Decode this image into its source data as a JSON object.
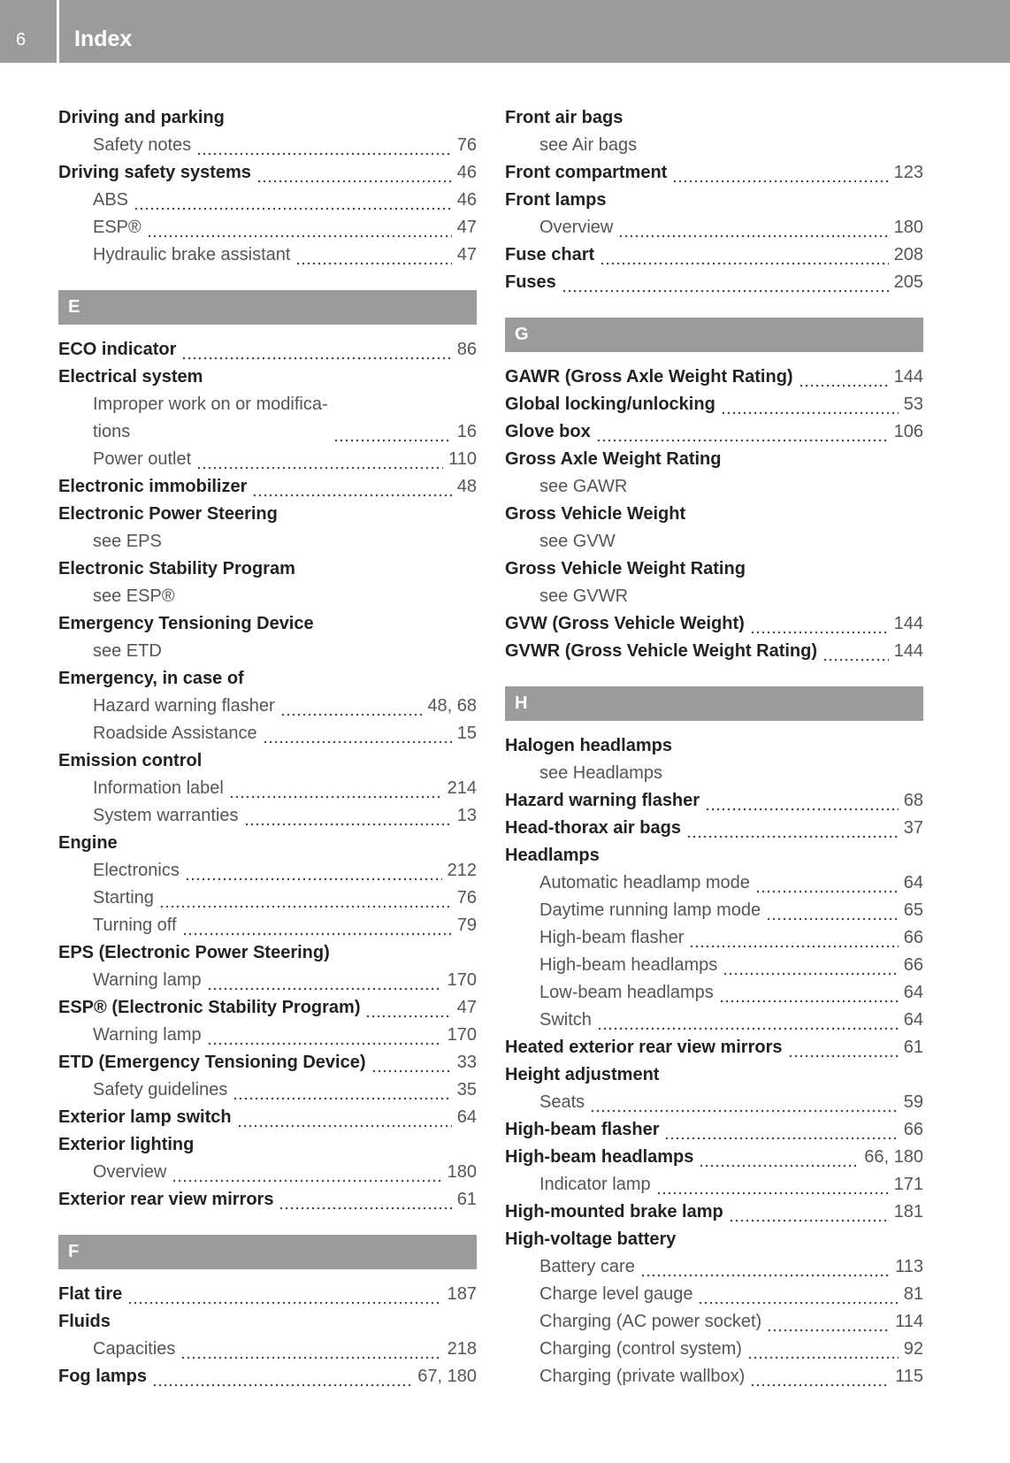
{
  "header": {
    "page": "6",
    "title": "Index"
  },
  "columns": [
    [
      {
        "term": "Driving and parking",
        "subs": [
          {
            "term": "Safety notes",
            "page": "76"
          }
        ]
      },
      {
        "term": "Driving safety systems",
        "page": "46",
        "subs": [
          {
            "term": "ABS",
            "page": "46"
          },
          {
            "term": "ESP®",
            "page": "47"
          },
          {
            "term": "Hydraulic brake assistant",
            "page": "47"
          }
        ]
      },
      {
        "letter": "E"
      },
      {
        "term": "ECO indicator",
        "page": "86"
      },
      {
        "term": "Electrical system",
        "subs": [
          {
            "term": "Improper work on or modifica-\ntions",
            "page": "16"
          },
          {
            "term": "Power outlet",
            "page": "110"
          }
        ]
      },
      {
        "term": "Electronic immobilizer",
        "page": "48"
      },
      {
        "term": "Electronic Power Steering",
        "subs": [
          {
            "term": "see EPS"
          }
        ]
      },
      {
        "term": "Electronic Stability Program",
        "subs": [
          {
            "term": "see ESP®"
          }
        ]
      },
      {
        "term": "Emergency Tensioning Device",
        "subs": [
          {
            "term": "see ETD"
          }
        ]
      },
      {
        "term": "Emergency, in case of",
        "subs": [
          {
            "term": "Hazard warning flasher",
            "page": "48, 68"
          },
          {
            "term": "Roadside Assistance",
            "page": "15"
          }
        ]
      },
      {
        "term": "Emission control",
        "subs": [
          {
            "term": "Information label",
            "page": "214"
          },
          {
            "term": "System warranties",
            "page": "13"
          }
        ]
      },
      {
        "term": "Engine",
        "subs": [
          {
            "term": "Electronics",
            "page": "212"
          },
          {
            "term": "Starting",
            "page": "76"
          },
          {
            "term": "Turning off",
            "page": "79"
          }
        ]
      },
      {
        "term": "EPS (Electronic Power Steering)",
        "subs": [
          {
            "term": "Warning lamp",
            "page": "170"
          }
        ]
      },
      {
        "term": "ESP® (Electronic Stability Program)",
        "page": "47",
        "subs": [
          {
            "term": "Warning lamp",
            "page": "170"
          }
        ]
      },
      {
        "term": "ETD (Emergency Tensioning Device)",
        "page": "33",
        "subs": [
          {
            "term": "Safety guidelines",
            "page": "35"
          }
        ]
      },
      {
        "term": "Exterior lamp switch",
        "page": "64"
      },
      {
        "term": "Exterior lighting",
        "subs": [
          {
            "term": "Overview",
            "page": "180"
          }
        ]
      },
      {
        "term": "Exterior rear view mirrors",
        "page": "61"
      },
      {
        "letter": "F"
      },
      {
        "term": "Flat tire",
        "page": "187"
      },
      {
        "term": "Fluids",
        "subs": [
          {
            "term": "Capacities",
            "page": "218"
          }
        ]
      },
      {
        "term": "Fog lamps",
        "page": "67, 180"
      }
    ],
    [
      {
        "term": "Front air bags",
        "subs": [
          {
            "term": "see Air bags"
          }
        ]
      },
      {
        "term": "Front compartment",
        "page": "123"
      },
      {
        "term": "Front lamps",
        "subs": [
          {
            "term": "Overview",
            "page": "180"
          }
        ]
      },
      {
        "term": "Fuse chart",
        "page": "208"
      },
      {
        "term": "Fuses",
        "page": "205"
      },
      {
        "letter": "G"
      },
      {
        "term": "GAWR (Gross Axle Weight Rating)",
        "page": "144"
      },
      {
        "term": "Global locking/unlocking",
        "page": "53"
      },
      {
        "term": "Glove box",
        "page": "106"
      },
      {
        "term": "Gross Axle Weight Rating",
        "subs": [
          {
            "term": "see GAWR"
          }
        ]
      },
      {
        "term": "Gross Vehicle Weight",
        "subs": [
          {
            "term": "see GVW"
          }
        ]
      },
      {
        "term": "Gross Vehicle Weight Rating",
        "subs": [
          {
            "term": "see GVWR"
          }
        ]
      },
      {
        "term": "GVW (Gross Vehicle Weight)",
        "page": "144"
      },
      {
        "term": "GVWR (Gross Vehicle Weight Rating)",
        "page": "144"
      },
      {
        "letter": "H"
      },
      {
        "term": "Halogen headlamps",
        "subs": [
          {
            "term": "see Headlamps"
          }
        ]
      },
      {
        "term": "Hazard warning flasher",
        "page": "68"
      },
      {
        "term": "Head-thorax air bags",
        "page": "37"
      },
      {
        "term": "Headlamps",
        "subs": [
          {
            "term": "Automatic headlamp mode",
            "page": "64"
          },
          {
            "term": "Daytime running lamp mode",
            "page": "65"
          },
          {
            "term": "High-beam flasher",
            "page": "66"
          },
          {
            "term": "High-beam headlamps",
            "page": "66"
          },
          {
            "term": "Low-beam headlamps",
            "page": "64"
          },
          {
            "term": "Switch",
            "page": "64"
          }
        ]
      },
      {
        "term": "Heated exterior rear view mirrors",
        "page": "61"
      },
      {
        "term": "Height adjustment",
        "subs": [
          {
            "term": "Seats",
            "page": "59"
          }
        ]
      },
      {
        "term": "High-beam flasher",
        "page": "66"
      },
      {
        "term": "High-beam headlamps",
        "page": "66, 180",
        "subs": [
          {
            "term": "Indicator lamp",
            "page": "171"
          }
        ]
      },
      {
        "term": "High-mounted brake lamp",
        "page": "181"
      },
      {
        "term": "High-voltage battery",
        "subs": [
          {
            "term": "Battery care",
            "page": "113"
          },
          {
            "term": "Charge level gauge",
            "page": "81"
          },
          {
            "term": "Charging (AC power socket)",
            "page": "114"
          },
          {
            "term": "Charging (control system)",
            "page": "92"
          },
          {
            "term": "Charging (private wallbox)",
            "page": "115"
          }
        ]
      }
    ]
  ]
}
